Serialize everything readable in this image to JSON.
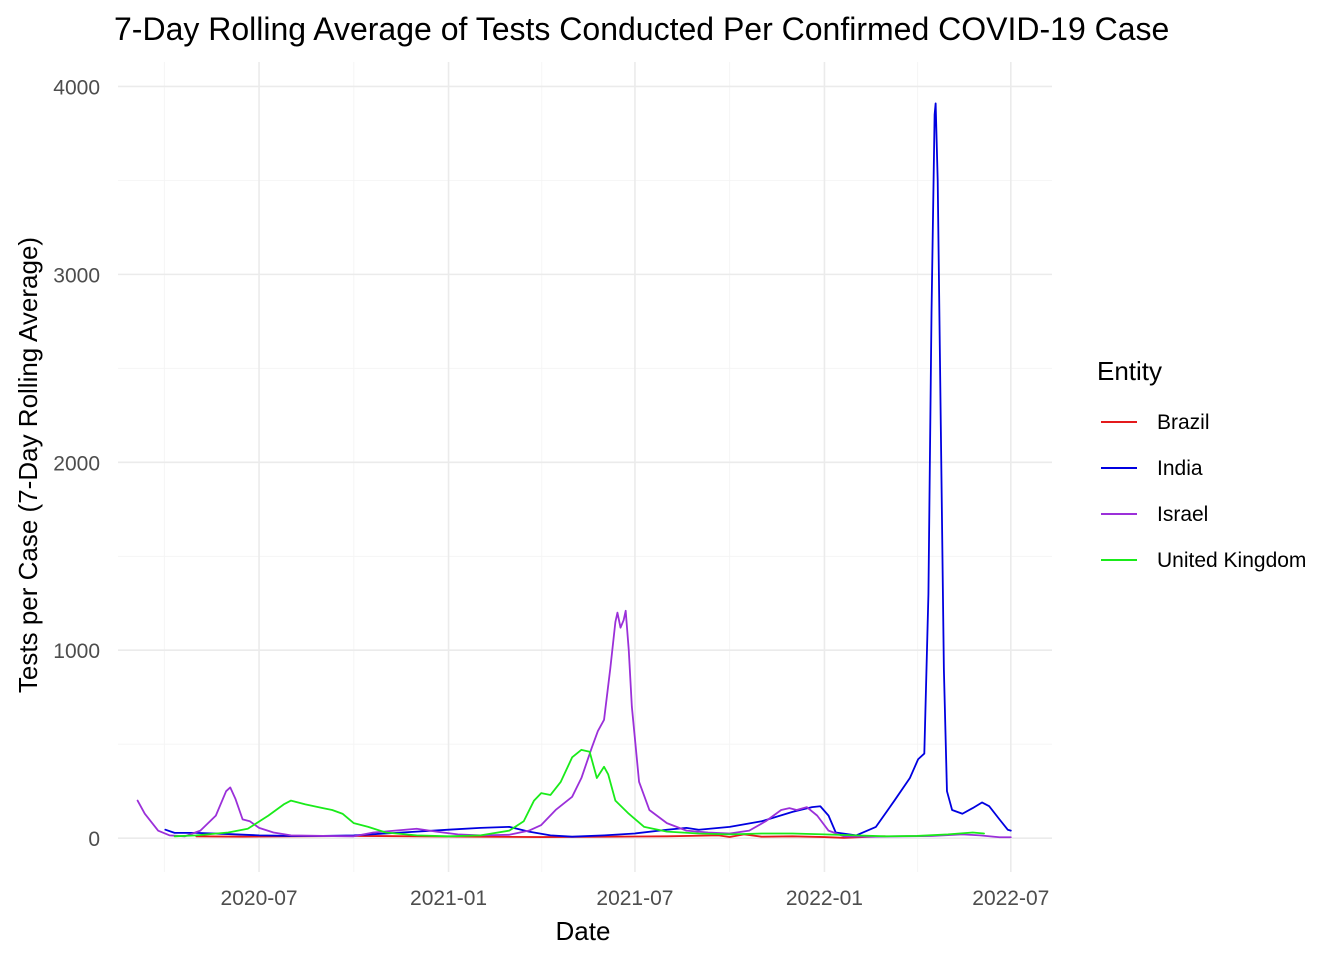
{
  "chart_data": {
    "type": "line",
    "title": "7-Day Rolling Average of Tests Conducted Per Confirmed COVID-19 Case",
    "xlabel": "Date",
    "ylabel": "Tests per Case (7-Day Rolling Average)",
    "x_ticks": [
      "2020-07",
      "2021-01",
      "2021-07",
      "2022-01",
      "2022-07"
    ],
    "y_ticks": [
      0,
      1000,
      2000,
      3000,
      4000
    ],
    "xlim": [
      "2020-02-15",
      "2022-08-10"
    ],
    "ylim": [
      -180,
      4130
    ],
    "grid": true,
    "legend": {
      "title": "Entity",
      "position": "right"
    },
    "series": [
      {
        "name": "Brazil",
        "color": "#e41a1c",
        "points": [
          [
            "2020-05-01",
            10
          ],
          [
            "2020-06-15",
            8
          ],
          [
            "2020-08-01",
            10
          ],
          [
            "2020-10-01",
            12
          ],
          [
            "2020-12-01",
            10
          ],
          [
            "2021-02-01",
            8
          ],
          [
            "2021-04-01",
            6
          ],
          [
            "2021-06-01",
            8
          ],
          [
            "2021-08-01",
            10
          ],
          [
            "2021-09-20",
            15
          ],
          [
            "2021-10-01",
            6
          ],
          [
            "2021-10-15",
            20
          ],
          [
            "2021-11-01",
            8
          ],
          [
            "2021-12-01",
            10
          ],
          [
            "2022-01-01",
            6
          ],
          [
            "2022-01-20",
            2
          ],
          [
            "2022-02-15",
            8
          ],
          [
            "2022-03-01",
            10
          ]
        ]
      },
      {
        "name": "India",
        "color": "#0000e0",
        "points": [
          [
            "2020-04-01",
            45
          ],
          [
            "2020-04-10",
            28
          ],
          [
            "2020-05-01",
            28
          ],
          [
            "2020-06-01",
            22
          ],
          [
            "2020-07-01",
            15
          ],
          [
            "2020-08-01",
            12
          ],
          [
            "2020-09-01",
            12
          ],
          [
            "2020-10-01",
            15
          ],
          [
            "2020-11-01",
            25
          ],
          [
            "2020-12-01",
            35
          ],
          [
            "2021-01-01",
            45
          ],
          [
            "2021-02-01",
            55
          ],
          [
            "2021-03-01",
            60
          ],
          [
            "2021-03-20",
            35
          ],
          [
            "2021-04-10",
            15
          ],
          [
            "2021-05-01",
            8
          ],
          [
            "2021-06-01",
            15
          ],
          [
            "2021-07-01",
            25
          ],
          [
            "2021-08-01",
            45
          ],
          [
            "2021-08-20",
            55
          ],
          [
            "2021-09-01",
            45
          ],
          [
            "2021-10-01",
            60
          ],
          [
            "2021-11-01",
            90
          ],
          [
            "2021-12-01",
            140
          ],
          [
            "2021-12-20",
            165
          ],
          [
            "2021-12-28",
            170
          ],
          [
            "2022-01-05",
            120
          ],
          [
            "2022-01-12",
            30
          ],
          [
            "2022-02-01",
            15
          ],
          [
            "2022-02-20",
            60
          ],
          [
            "2022-03-10",
            200
          ],
          [
            "2022-03-25",
            320
          ],
          [
            "2022-04-02",
            420
          ],
          [
            "2022-04-08",
            450
          ],
          [
            "2022-04-12",
            1300
          ],
          [
            "2022-04-15",
            2800
          ],
          [
            "2022-04-18",
            3850
          ],
          [
            "2022-04-19",
            3910
          ],
          [
            "2022-04-21",
            3500
          ],
          [
            "2022-04-24",
            2200
          ],
          [
            "2022-04-27",
            900
          ],
          [
            "2022-04-30",
            250
          ],
          [
            "2022-05-05",
            150
          ],
          [
            "2022-05-15",
            130
          ],
          [
            "2022-05-25",
            160
          ],
          [
            "2022-06-03",
            190
          ],
          [
            "2022-06-10",
            170
          ],
          [
            "2022-06-20",
            100
          ],
          [
            "2022-06-28",
            45
          ],
          [
            "2022-07-01",
            40
          ]
        ]
      },
      {
        "name": "Israel",
        "color": "#9b30d9",
        "points": [
          [
            "2020-03-05",
            200
          ],
          [
            "2020-03-12",
            130
          ],
          [
            "2020-03-25",
            40
          ],
          [
            "2020-04-05",
            15
          ],
          [
            "2020-04-20",
            10
          ],
          [
            "2020-05-05",
            40
          ],
          [
            "2020-05-20",
            120
          ],
          [
            "2020-05-30",
            250
          ],
          [
            "2020-06-03",
            270
          ],
          [
            "2020-06-08",
            210
          ],
          [
            "2020-06-15",
            100
          ],
          [
            "2020-06-22",
            90
          ],
          [
            "2020-07-01",
            55
          ],
          [
            "2020-07-15",
            30
          ],
          [
            "2020-08-01",
            15
          ],
          [
            "2020-09-01",
            12
          ],
          [
            "2020-10-01",
            10
          ],
          [
            "2020-10-20",
            30
          ],
          [
            "2020-11-10",
            40
          ],
          [
            "2020-12-01",
            50
          ],
          [
            "2020-12-20",
            35
          ],
          [
            "2021-01-10",
            20
          ],
          [
            "2021-02-01",
            15
          ],
          [
            "2021-03-01",
            18
          ],
          [
            "2021-03-20",
            40
          ],
          [
            "2021-04-01",
            70
          ],
          [
            "2021-04-15",
            150
          ],
          [
            "2021-05-01",
            220
          ],
          [
            "2021-05-10",
            320
          ],
          [
            "2021-05-20",
            480
          ],
          [
            "2021-05-26",
            570
          ],
          [
            "2021-06-01",
            630
          ],
          [
            "2021-06-07",
            900
          ],
          [
            "2021-06-12",
            1150
          ],
          [
            "2021-06-14",
            1200
          ],
          [
            "2021-06-17",
            1120
          ],
          [
            "2021-06-20",
            1160
          ],
          [
            "2021-06-22",
            1210
          ],
          [
            "2021-06-25",
            1000
          ],
          [
            "2021-06-28",
            700
          ],
          [
            "2021-07-05",
            300
          ],
          [
            "2021-07-15",
            150
          ],
          [
            "2021-08-01",
            80
          ],
          [
            "2021-08-20",
            40
          ],
          [
            "2021-09-10",
            30
          ],
          [
            "2021-10-01",
            25
          ],
          [
            "2021-10-20",
            40
          ],
          [
            "2021-11-05",
            90
          ],
          [
            "2021-11-20",
            150
          ],
          [
            "2021-11-28",
            160
          ],
          [
            "2021-12-05",
            150
          ],
          [
            "2021-12-15",
            165
          ],
          [
            "2021-12-25",
            120
          ],
          [
            "2022-01-05",
            40
          ],
          [
            "2022-01-20",
            10
          ],
          [
            "2022-02-15",
            8
          ],
          [
            "2022-03-15",
            10
          ],
          [
            "2022-04-15",
            12
          ],
          [
            "2022-05-15",
            20
          ],
          [
            "2022-06-01",
            15
          ],
          [
            "2022-06-20",
            5
          ],
          [
            "2022-07-01",
            5
          ]
        ]
      },
      {
        "name": "United Kingdom",
        "color": "#1aeb1a",
        "points": [
          [
            "2020-04-10",
            10
          ],
          [
            "2020-05-01",
            15
          ],
          [
            "2020-06-01",
            30
          ],
          [
            "2020-06-20",
            50
          ],
          [
            "2020-07-10",
            120
          ],
          [
            "2020-07-25",
            180
          ],
          [
            "2020-08-01",
            200
          ],
          [
            "2020-08-15",
            180
          ],
          [
            "2020-09-01",
            160
          ],
          [
            "2020-09-10",
            150
          ],
          [
            "2020-09-20",
            130
          ],
          [
            "2020-10-01",
            80
          ],
          [
            "2020-10-15",
            60
          ],
          [
            "2020-11-01",
            30
          ],
          [
            "2020-12-01",
            15
          ],
          [
            "2021-01-01",
            10
          ],
          [
            "2021-02-01",
            15
          ],
          [
            "2021-03-01",
            40
          ],
          [
            "2021-03-15",
            90
          ],
          [
            "2021-03-25",
            200
          ],
          [
            "2021-04-01",
            240
          ],
          [
            "2021-04-10",
            230
          ],
          [
            "2021-04-20",
            300
          ],
          [
            "2021-05-01",
            430
          ],
          [
            "2021-05-10",
            470
          ],
          [
            "2021-05-18",
            460
          ],
          [
            "2021-05-25",
            320
          ],
          [
            "2021-06-01",
            380
          ],
          [
            "2021-06-05",
            340
          ],
          [
            "2021-06-12",
            200
          ],
          [
            "2021-06-25",
            130
          ],
          [
            "2021-07-10",
            60
          ],
          [
            "2021-08-01",
            35
          ],
          [
            "2021-09-01",
            25
          ],
          [
            "2021-10-01",
            20
          ],
          [
            "2021-11-01",
            25
          ],
          [
            "2021-12-01",
            25
          ],
          [
            "2022-01-01",
            20
          ],
          [
            "2022-02-01",
            15
          ],
          [
            "2022-03-01",
            10
          ],
          [
            "2022-04-01",
            12
          ],
          [
            "2022-05-01",
            20
          ],
          [
            "2022-05-25",
            30
          ],
          [
            "2022-06-05",
            25
          ]
        ]
      }
    ]
  }
}
